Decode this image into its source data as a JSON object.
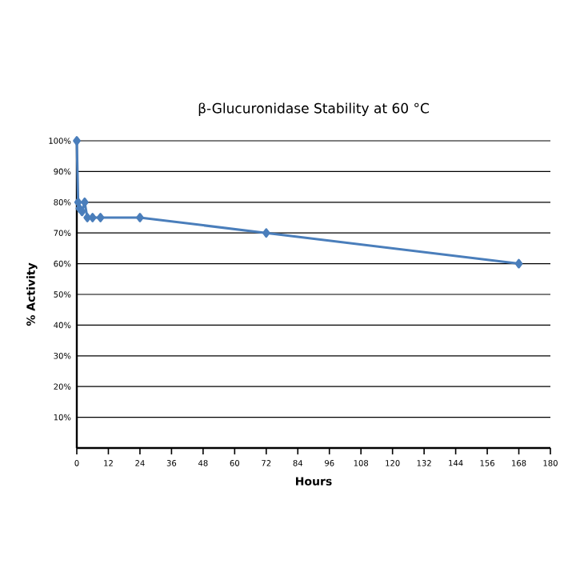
{
  "chart_data": {
    "type": "line",
    "title": "β-Glucuronidase Stability at 60 °C",
    "xlabel": "Hours",
    "ylabel": "% Activity",
    "x": [
      0,
      0.5,
      1,
      2,
      3,
      4,
      6,
      9,
      24,
      72,
      168
    ],
    "series": [
      {
        "color": "#4a7ebb",
        "values": [
          100,
          80,
          78,
          77,
          80,
          75,
          75,
          75,
          75,
          70,
          60
        ]
      }
    ],
    "xlim": [
      0,
      180
    ],
    "xticks": [
      0,
      12,
      24,
      36,
      48,
      60,
      72,
      84,
      96,
      108,
      120,
      132,
      144,
      156,
      168,
      180
    ],
    "ylim": [
      0,
      100
    ],
    "yticks": [
      {
        "value": 10,
        "label": "10%"
      },
      {
        "value": 20,
        "label": "20%"
      },
      {
        "value": 30,
        "label": "30%"
      },
      {
        "value": 40,
        "label": "40%"
      },
      {
        "value": 50,
        "label": "50%"
      },
      {
        "value": 60,
        "label": "60%"
      },
      {
        "value": 70,
        "label": "70%"
      },
      {
        "value": 80,
        "label": "80%"
      },
      {
        "value": 90,
        "label": "90%"
      },
      {
        "value": 100,
        "label": "100%"
      }
    ],
    "grid": "y",
    "marker": "diamond",
    "line_style": "solid"
  }
}
